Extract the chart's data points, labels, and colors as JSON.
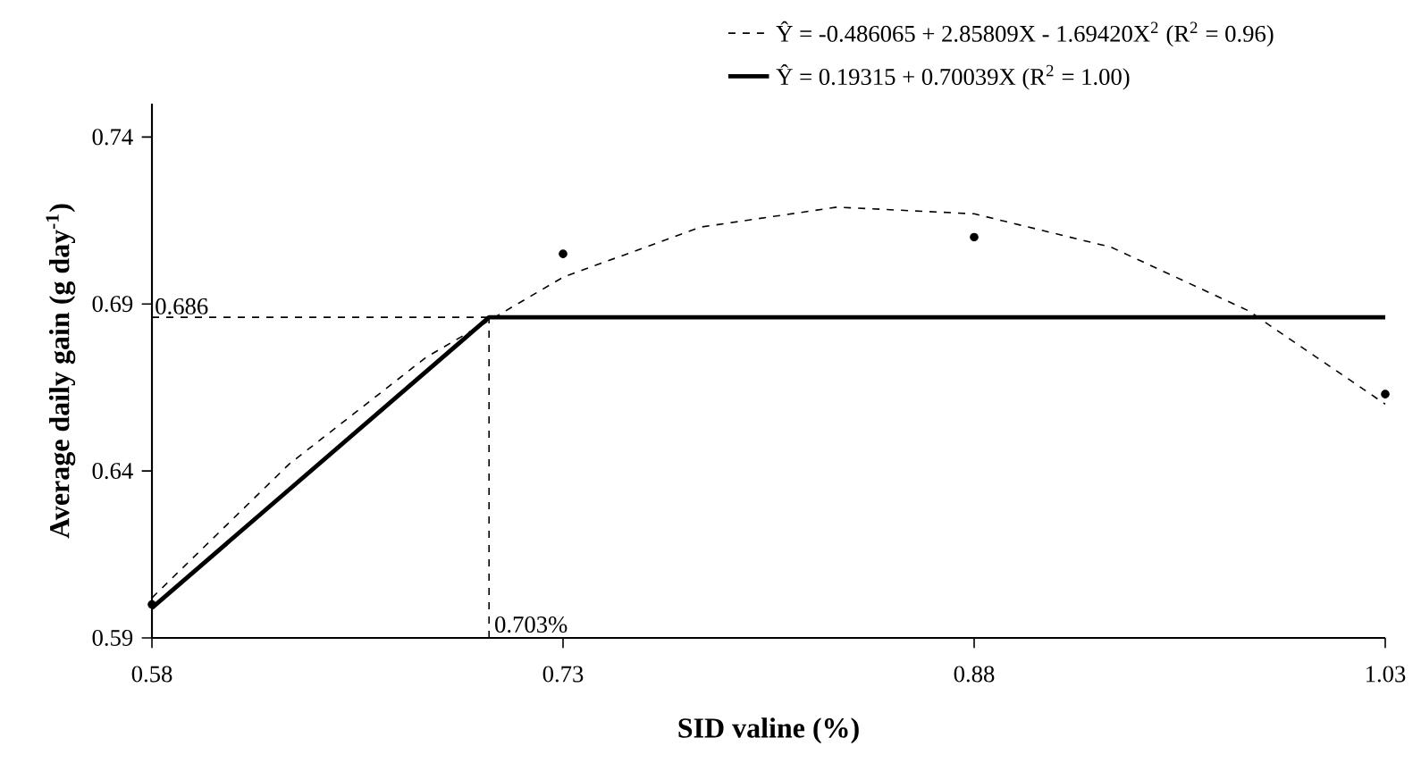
{
  "chart_data": {
    "type": "line",
    "xlabel": "SID valine (%)",
    "ylabel": "Average daily gain (g day$^{-1}$)",
    "xlim": [
      0.58,
      1.03
    ],
    "ylim": [
      0.59,
      0.75
    ],
    "xticks": [
      0.58,
      0.73,
      0.88,
      1.03
    ],
    "yticks": [
      0.59,
      0.64,
      0.69,
      0.74
    ],
    "grid": false,
    "legend": "top",
    "series": [
      {
        "type": "scatter",
        "marker": "circle",
        "color": "#000000",
        "x": [
          0.58,
          0.73,
          0.88,
          1.03
        ],
        "values": [
          0.6,
          0.705,
          0.71,
          0.663
        ]
      },
      {
        "name": "Ŷ = -0.486065 + 2.85809X - 1.69420X$^{2}$  (R$^{2}$ = 0.96)",
        "line_style": "dashed",
        "marker": "none",
        "color": "#000000",
        "x": [
          0.58,
          0.63,
          0.68,
          0.73,
          0.78,
          0.83,
          0.88,
          0.93,
          0.98,
          1.03
        ],
        "values": [
          0.602,
          0.642,
          0.674,
          0.698,
          0.713,
          0.719,
          0.717,
          0.707,
          0.688,
          0.66
        ]
      },
      {
        "name": "Ŷ = 0.19315 + 0.70039X  (R$^{2}$ = 1.00)",
        "line_style": "solid",
        "marker": "none",
        "color": "#000000",
        "x": [
          0.58,
          0.703,
          1.03
        ],
        "values": [
          0.599,
          0.686,
          0.686
        ]
      }
    ],
    "ref_lines": [
      {
        "axis": "y",
        "value": 0.686,
        "label": "0.686",
        "line_style": "dashed",
        "color": "#000000"
      },
      {
        "axis": "x",
        "value": 0.703,
        "label": "0.703%",
        "line_style": "dashed",
        "color": "#000000"
      }
    ]
  }
}
